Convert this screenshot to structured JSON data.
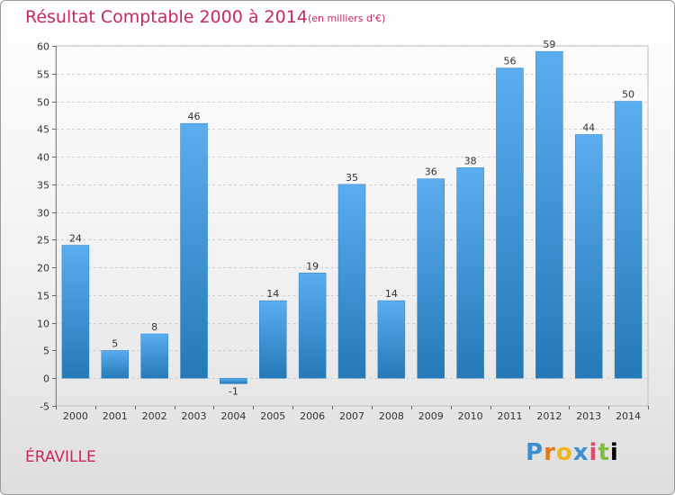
{
  "header": {
    "title": "Résultat Comptable 2000 à 2014",
    "subtitle": "(en milliers d'€)"
  },
  "footer": {
    "commune": "ÉRAVILLE",
    "logo": [
      "P",
      "r",
      "o",
      "x",
      "i",
      "t",
      "i"
    ]
  },
  "colors": {
    "title": "#c8285a",
    "bar_light": "#5aaef0",
    "bar_dark": "#2479b8",
    "grid": "#d0d0d0"
  },
  "chart_data": {
    "type": "bar",
    "title": "Résultat Comptable 2000 à 2014",
    "subtitle": "(en milliers d'€)",
    "categories": [
      "2000",
      "2001",
      "2002",
      "2003",
      "2004",
      "2005",
      "2006",
      "2007",
      "2008",
      "2009",
      "2010",
      "2011",
      "2012",
      "2013",
      "2014"
    ],
    "values": [
      24,
      5,
      8,
      46,
      -1,
      14,
      19,
      35,
      14,
      36,
      38,
      56,
      59,
      44,
      50
    ],
    "data_labels": [
      "24",
      "5",
      "8",
      "46",
      "-1",
      "14",
      "19",
      "35",
      "14",
      "36",
      "38",
      "56",
      "59",
      "44",
      "50"
    ],
    "y_ticks": [
      "60",
      "55",
      "50",
      "45",
      "40",
      "35",
      "30",
      "25",
      "20",
      "15",
      "10",
      "5",
      "0",
      "-5"
    ],
    "ylim": [
      -5,
      60
    ],
    "grid": true,
    "legend": "none"
  }
}
